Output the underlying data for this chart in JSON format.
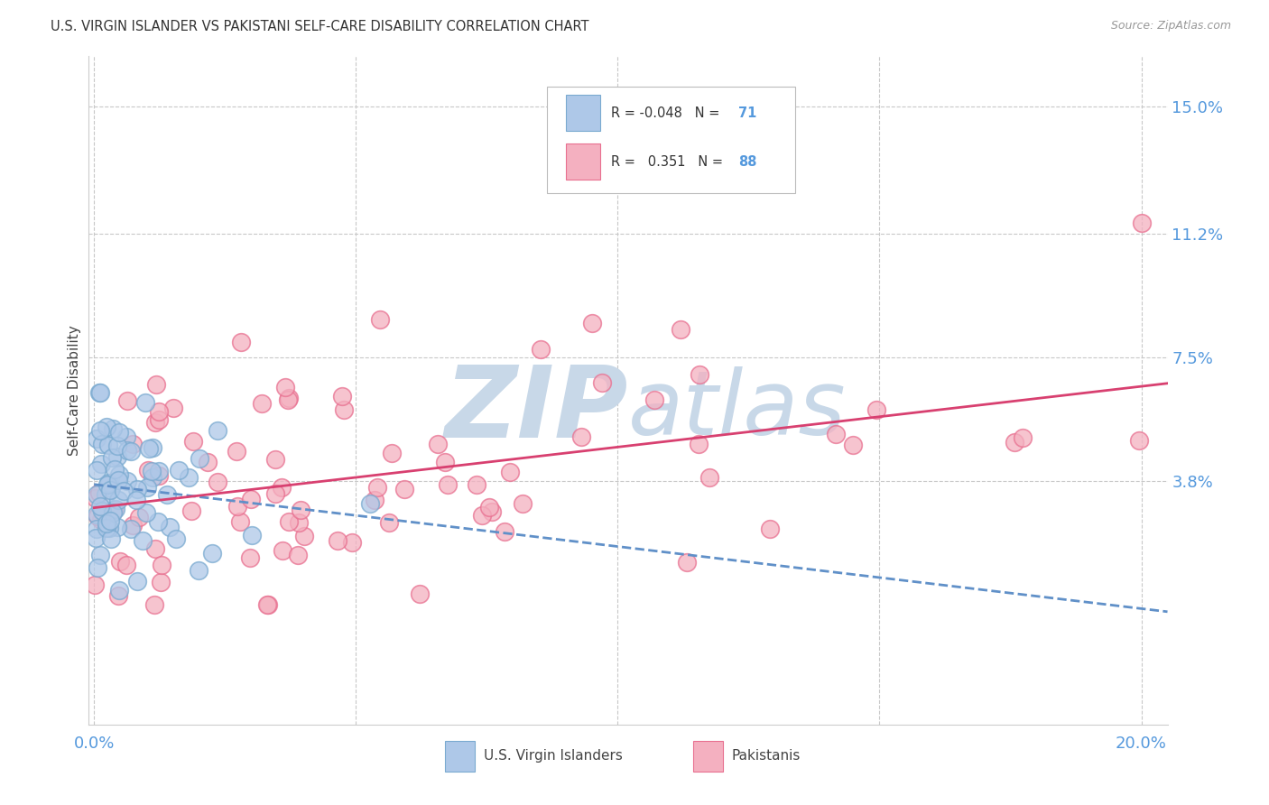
{
  "title": "U.S. VIRGIN ISLANDER VS PAKISTANI SELF-CARE DISABILITY CORRELATION CHART",
  "source": "Source: ZipAtlas.com",
  "ylabel": "Self-Care Disability",
  "ytick_vals": [
    0.038,
    0.075,
    0.112,
    0.15
  ],
  "ytick_labels": [
    "3.8%",
    "7.5%",
    "11.2%",
    "15.0%"
  ],
  "xlim": [
    -0.001,
    0.205
  ],
  "ylim": [
    -0.035,
    0.165
  ],
  "color_vi_fill": "#aec8e8",
  "color_vi_edge": "#7aaad0",
  "color_pk_fill": "#f4b0c0",
  "color_pk_edge": "#e87090",
  "line_vi_color": "#6090c8",
  "line_pk_color": "#d84070",
  "background_color": "#ffffff",
  "watermark_zip": "ZIP",
  "watermark_atlas": "atlas",
  "watermark_color": "#c8d8e8",
  "grid_color": "#c8c8c8",
  "tick_color": "#5599dd",
  "legend_r1_text": "R = -0.048",
  "legend_n1_text": "N = 71",
  "legend_r2_text": "R =   0.351",
  "legend_n2_text": "N = 88",
  "vi_R": -0.048,
  "vi_N": 71,
  "pk_R": 0.351,
  "pk_N": 88
}
